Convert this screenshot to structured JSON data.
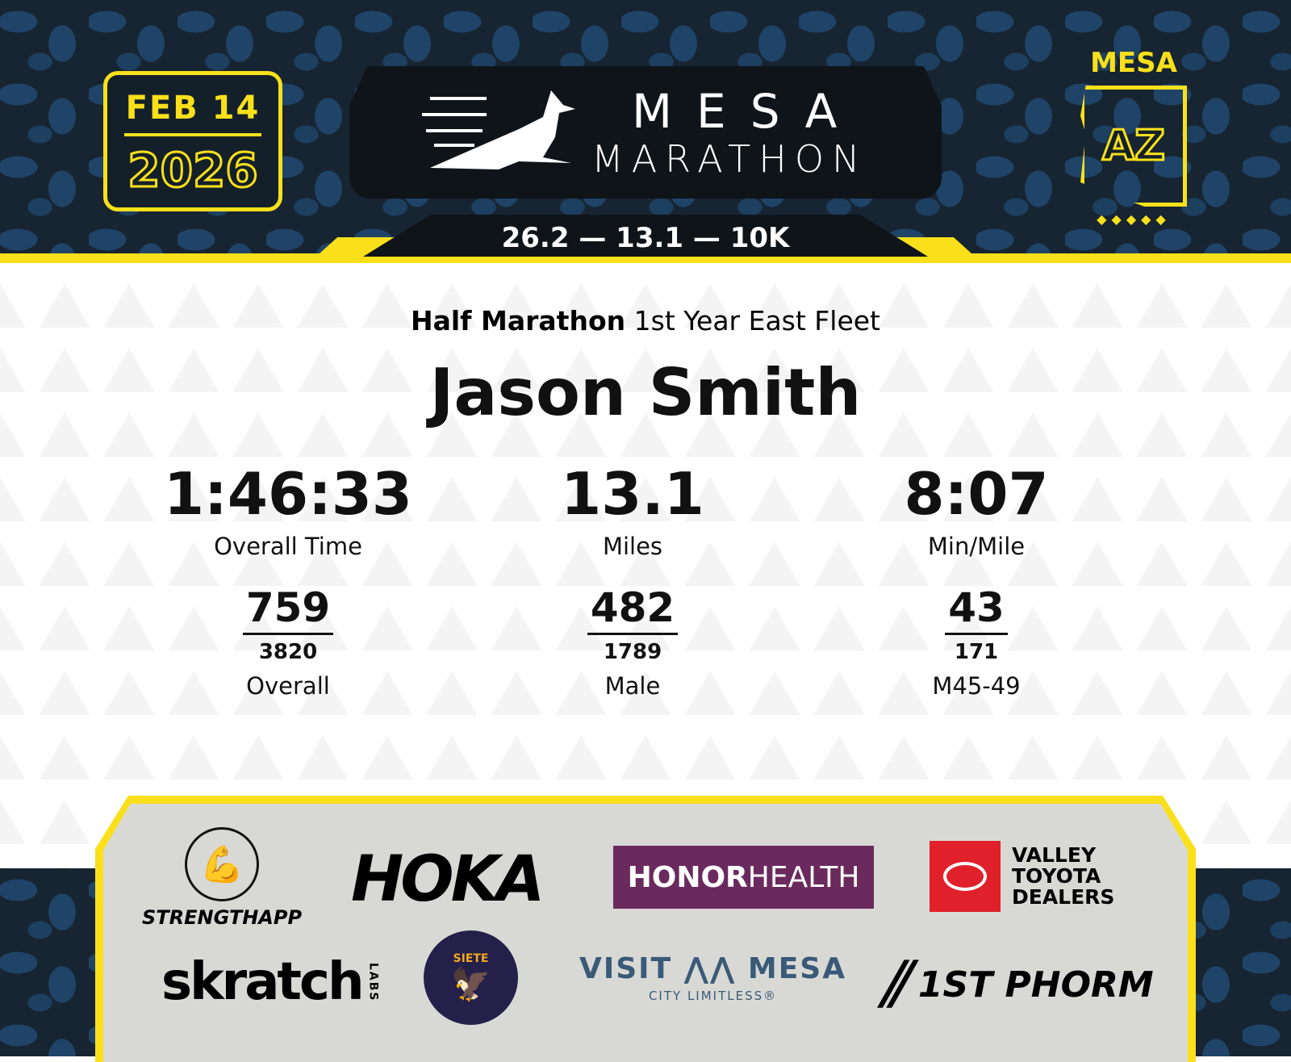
{
  "header": {
    "date": "FEB 14",
    "year": "2026",
    "logo_line1": "MESA",
    "logo_line2": "MARATHON",
    "distances": "26.2 — 13.1 — 10K",
    "state_city": "MESA",
    "state_abbr": "AZ",
    "dots": "◆◆◆◆◆"
  },
  "result": {
    "race": "Half Marathon",
    "group": "1st Year East Fleet",
    "name": "Jason Smith",
    "stats": [
      {
        "value": "1:46:33",
        "label": "Overall Time",
        "rank": "759",
        "total": "3820",
        "category": "Overall"
      },
      {
        "value": "13.1",
        "label": "Miles",
        "rank": "482",
        "total": "1789",
        "category": "Male"
      },
      {
        "value": "8:07",
        "label": "Min/Mile",
        "rank": "43",
        "total": "171",
        "category": "M45-49"
      }
    ]
  },
  "sponsors": {
    "strengthapp": "STRENGTHAPP",
    "hoka": "HOKA",
    "honor_a": "HONOR",
    "honor_b": "HEALTH",
    "toyota": [
      "VALLEY",
      "TOYOTA",
      "DEALERS"
    ],
    "skratch": "skratch",
    "skratch_sub": "LABS",
    "siete": "SIETE",
    "visit": "VISIT ⋀⋀ MESA",
    "visit_sub": "CITY LIMITLESS®",
    "phorm": "1ST PHORM"
  },
  "colors": {
    "accent": "#f9e01b",
    "dark": "#172431",
    "honor": "#6a2a5e",
    "toyota": "#e0202a"
  }
}
